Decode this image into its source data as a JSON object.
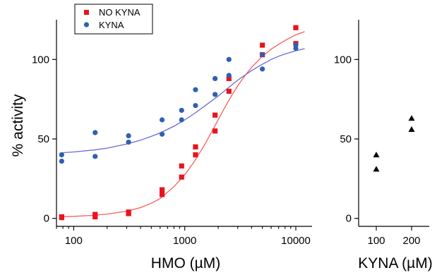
{
  "chart_data": [
    {
      "type": "scatter",
      "xlabel": "HMO (µM)",
      "ylabel": "% activity",
      "xscale": "log",
      "xlim": [
        70,
        14000
      ],
      "ylim": [
        -5,
        125
      ],
      "xticks": [
        100,
        1000,
        10000
      ],
      "xtick_labels": [
        "100",
        "1000",
        "10000"
      ],
      "yticks": [
        0,
        50,
        100
      ],
      "ytick_labels": [
        "0",
        "50",
        "100"
      ],
      "legend_position": "top-left",
      "grid": false,
      "series": [
        {
          "name": "NO KYNA",
          "marker": "square",
          "color": "#e8141c",
          "fit_color": "#ff5a5a",
          "points": [
            [
              78,
              1
            ],
            [
              78,
              0.5
            ],
            [
              156,
              2.5
            ],
            [
              156,
              1
            ],
            [
              312,
              4
            ],
            [
              312,
              3
            ],
            [
              625,
              18
            ],
            [
              625,
              15
            ],
            [
              937,
              33
            ],
            [
              937,
              26
            ],
            [
              1250,
              45
            ],
            [
              1250,
              40
            ],
            [
              1875,
              65
            ],
            [
              1875,
              55
            ],
            [
              2500,
              88
            ],
            [
              2500,
              80
            ],
            [
              5000,
              109
            ],
            [
              5000,
              103
            ],
            [
              10000,
              120
            ],
            [
              10000,
              110
            ]
          ],
          "fit": [
            [
              75,
              1.1
            ],
            [
              100,
              1.3
            ],
            [
              150,
              1.9
            ],
            [
              200,
              2.7
            ],
            [
              300,
              4.5
            ],
            [
              400,
              6.8
            ],
            [
              500,
              9.5
            ],
            [
              600,
              12.5
            ],
            [
              800,
              20
            ],
            [
              1000,
              27.5
            ],
            [
              1200,
              35
            ],
            [
              1500,
              46
            ],
            [
              1800,
              56
            ],
            [
              2200,
              67.5
            ],
            [
              2600,
              76.5
            ],
            [
              3000,
              83.5
            ],
            [
              3500,
              90
            ],
            [
              4000,
              95
            ],
            [
              5000,
              102
            ],
            [
              6000,
              106.5
            ],
            [
              7000,
              109.5
            ],
            [
              8000,
              112
            ],
            [
              10000,
              115.5
            ],
            [
              12000,
              117.5
            ]
          ]
        },
        {
          "name": "KYNA",
          "marker": "circle",
          "color": "#2f5fb3",
          "fit_color": "#6a6ad8",
          "points": [
            [
              78,
              40
            ],
            [
              78,
              36
            ],
            [
              156,
              54
            ],
            [
              156,
              39
            ],
            [
              312,
              52
            ],
            [
              312,
              48
            ],
            [
              625,
              62
            ],
            [
              625,
              53
            ],
            [
              937,
              68
            ],
            [
              937,
              62
            ],
            [
              1250,
              81
            ],
            [
              1250,
              71
            ],
            [
              1875,
              88
            ],
            [
              1875,
              78
            ],
            [
              2500,
              100
            ],
            [
              2500,
              90
            ],
            [
              5000,
              103
            ],
            [
              5000,
              94
            ],
            [
              10000,
              109
            ],
            [
              10000,
              107
            ]
          ],
          "fit": [
            [
              75,
              41.2
            ],
            [
              100,
              41.8
            ],
            [
              150,
              43
            ],
            [
              200,
              44.2
            ],
            [
              300,
              46.8
            ],
            [
              400,
              49.2
            ],
            [
              500,
              51.6
            ],
            [
              600,
              53.8
            ],
            [
              800,
              58
            ],
            [
              1000,
              62
            ],
            [
              1200,
              65.6
            ],
            [
              1500,
              70.5
            ],
            [
              2000,
              77
            ],
            [
              2500,
              82.5
            ],
            [
              3000,
              87
            ],
            [
              4000,
              93
            ],
            [
              5000,
              97
            ],
            [
              6000,
              100
            ],
            [
              7000,
              102
            ],
            [
              8000,
              103.5
            ],
            [
              10000,
              105.5
            ],
            [
              12000,
              106.8
            ]
          ]
        }
      ]
    },
    {
      "type": "scatter",
      "xlabel": "KYNA (µM)",
      "ylabel": "",
      "xlim": [
        50,
        250
      ],
      "ylim": [
        -5,
        125
      ],
      "xticks": [
        100,
        200
      ],
      "xtick_labels": [
        "100",
        "200"
      ],
      "yticks": [
        0,
        50,
        100
      ],
      "ytick_labels": [
        "0",
        "50",
        "100"
      ],
      "grid": false,
      "series": [
        {
          "marker": "triangle",
          "color": "#000000",
          "points": [
            [
              100,
              40
            ],
            [
              100,
              31
            ],
            [
              200,
              63
            ],
            [
              200,
              56
            ]
          ]
        }
      ]
    }
  ]
}
